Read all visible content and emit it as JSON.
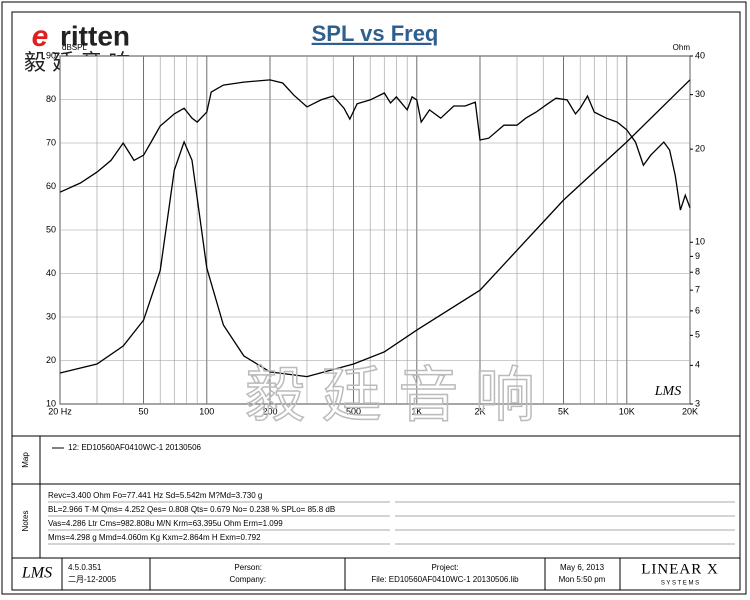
{
  "chart_data": {
    "type": "line",
    "title": "SPL vs Freq",
    "ylabel": "dBSPL",
    "y2label": "Ohm",
    "xlog": true,
    "y2log": true,
    "grid": true,
    "xlim": [
      20,
      20000
    ],
    "xticks": [
      {
        "value": 20,
        "label": "20 Hz"
      },
      50,
      100,
      200,
      500,
      {
        "value": 1000,
        "label": "1K"
      },
      {
        "value": 2000,
        "label": "2K"
      },
      {
        "value": 5000,
        "label": "5K"
      },
      {
        "value": 10000,
        "label": "10K"
      },
      {
        "value": 20000,
        "label": "20K"
      }
    ],
    "ylim": [
      10,
      90
    ],
    "yticks": [
      10,
      20,
      30,
      40,
      50,
      60,
      70,
      80,
      90
    ],
    "y2lim": [
      3,
      40
    ],
    "y2ticks": [
      3,
      4,
      5,
      6,
      7,
      8,
      9,
      10,
      20,
      30,
      40
    ],
    "series": [
      {
        "name": "SPL",
        "color": "#000000",
        "x": [
          20,
          25,
          30,
          35,
          40,
          45,
          50,
          55,
          60,
          70,
          78,
          85,
          90,
          100,
          105,
          120,
          150,
          200,
          230,
          260,
          300,
          350,
          400,
          450,
          480,
          520,
          600,
          700,
          750,
          800,
          900,
          950,
          1000,
          1050,
          1150,
          1300,
          1500,
          1700,
          1900,
          2000,
          2200,
          2600,
          3000,
          3300,
          3700,
          4200,
          4600,
          5200,
          5700,
          6000,
          6500,
          7000,
          8000,
          9000,
          10000,
          11000,
          12000,
          13000,
          15000,
          16000,
          17000,
          18000,
          19000,
          20000
        ],
        "values": [
          58.7,
          60.8,
          63.3,
          66,
          70,
          66,
          67.2,
          70.7,
          73.9,
          76.7,
          78,
          75.7,
          74.8,
          77.1,
          81.7,
          83.3,
          84,
          84.5,
          83.8,
          81,
          78.3,
          79.9,
          80.8,
          78,
          75.5,
          79,
          79.9,
          81.5,
          79.2,
          80.6,
          77.6,
          80.6,
          79.9,
          74.8,
          77.6,
          75.7,
          78.5,
          78.5,
          79.4,
          70.7,
          71.1,
          74.1,
          74.1,
          75.7,
          77.1,
          79,
          80.3,
          79.9,
          76.7,
          78,
          80.8,
          77.1,
          75.7,
          74.8,
          73,
          70.2,
          64.9,
          67.2,
          70.2,
          68.4,
          62.6,
          54.6,
          58,
          55.1
        ]
      },
      {
        "name": "Impedance",
        "color": "#000000",
        "axis": "y2",
        "x": [
          20,
          30,
          40,
          50,
          60,
          70,
          78,
          85,
          100,
          120,
          150,
          200,
          300,
          500,
          700,
          1000,
          2000,
          5000,
          10000,
          20000
        ],
        "values": [
          3.78,
          4.04,
          4.62,
          5.6,
          8.1,
          17.1,
          21.1,
          18.4,
          8.25,
          5.4,
          4.29,
          3.81,
          3.68,
          4.04,
          4.42,
          5.2,
          7.0,
          13.7,
          21.1,
          33.5
        ]
      }
    ],
    "legend_entry": "12: ED10560AF0410WC-1  20130506"
  },
  "header": {
    "logo": "ritten",
    "logo_cn": "毅 廷 音 响",
    "plot_mark": "LMS",
    "watermark": "毅 廷 音 响"
  },
  "panels": {
    "map": "Map",
    "notes": "Notes",
    "notes_lines": [
      "Revc=3.400 Ohm  Fo=77.441 Hz  Sd=5.542m M?Md=3.730 g",
      "BL=2.966 T·M  Qms= 4.252  Qes= 0.808  Qts= 0.679  No= 0.238 %  SPLo= 85.8 dB",
      "Vas=4.286 Ltr  Cms=982.808u M/N  Krm=63.395u Ohm  Erm=1.099",
      "Mms=4.298 g  Mmd=4.060m Kg  Kxm=2.864m H  Exm=0.792"
    ]
  },
  "footer": {
    "logo": "LMS",
    "version": "4.5.0.351",
    "build_date": "二月-12-2005",
    "person": "Person:",
    "company": "Company:",
    "project": "Project:",
    "file": "File: ED10560AF0410WC-1  20130506.lib",
    "date": "May  6, 2013",
    "time": "Mon  5:50 pm",
    "brand": "LINEAR X",
    "brand_sub": "S Y S T E M S"
  }
}
